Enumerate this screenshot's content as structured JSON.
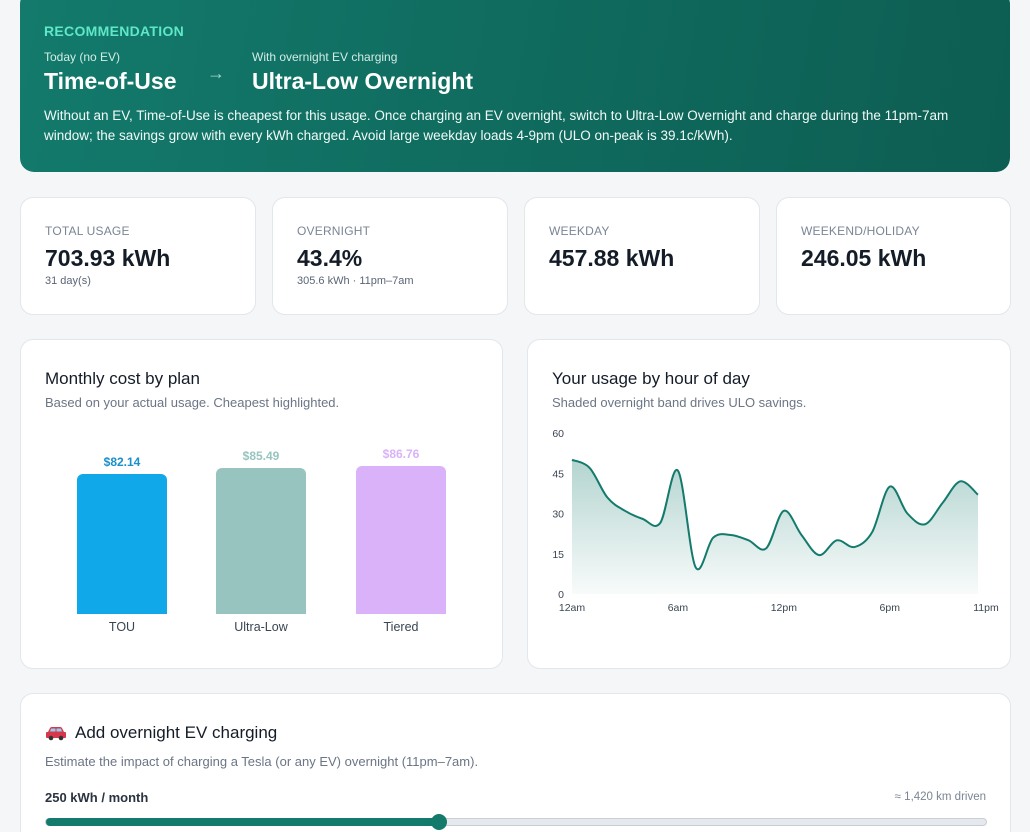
{
  "recommendation": {
    "label": "RECOMMENDATION",
    "today_label": "Today (no EV)",
    "today_plan": "Time-of-Use",
    "arrow": "→",
    "ev_label": "With overnight EV charging",
    "ev_plan": "Ultra-Low Overnight",
    "description": "Without an EV, Time-of-Use is cheapest for this usage. Once charging an EV overnight, switch to Ultra-Low Overnight and charge during the 11pm-7am window; the savings grow with every kWh charged. Avoid large weekday loads 4-9pm (ULO on-peak is 39.1c/kWh)."
  },
  "stats": [
    {
      "label": "TOTAL USAGE",
      "value": "703.93 kWh",
      "sub": "31 day(s)"
    },
    {
      "label": "OVERNIGHT",
      "value": "43.4%",
      "sub": "305.6 kWh · 11pm–7am"
    },
    {
      "label": "WEEKDAY",
      "value": "457.88 kWh",
      "sub": ""
    },
    {
      "label": "WEEKEND/HOLIDAY",
      "value": "246.05 kWh",
      "sub": ""
    }
  ],
  "cost_card": {
    "title": "Monthly cost by plan",
    "subtitle": "Based on your actual usage. Cheapest highlighted."
  },
  "usage_card": {
    "title": "Your usage by hour of day",
    "subtitle": "Shaded overnight band drives ULO savings."
  },
  "ev": {
    "icon": "car-icon",
    "title": "Add overnight EV charging",
    "subtitle": "Estimate the impact of charging a Tesla (or any EV) overnight (11pm–7am).",
    "value_label": "250 kWh / month",
    "km_label": "≈ 1,420 km driven",
    "slider_fraction": 0.418
  },
  "colors": {
    "accent": "#137a6c",
    "tou": "#10a8e8",
    "ulo": "#97c4bf",
    "tiered": "#d9b2fa"
  },
  "chart_data": [
    {
      "type": "bar",
      "categories": [
        "TOU",
        "Ultra-Low",
        "Tiered"
      ],
      "values": [
        82.14,
        85.49,
        86.76
      ],
      "value_labels": [
        "$82.14",
        "$85.49",
        "$86.76"
      ],
      "colors": [
        "#10a8e8",
        "#97c4bf",
        "#d9b2fa"
      ],
      "title": "Monthly cost by plan",
      "subtitle": "Based on your actual usage. Cheapest highlighted."
    },
    {
      "type": "area",
      "title": "Your usage by hour of day",
      "subtitle": "Shaded overnight band drives ULO savings.",
      "x": [
        0,
        1,
        2,
        3,
        4,
        5,
        6,
        7,
        8,
        9,
        10,
        11,
        12,
        13,
        14,
        15,
        16,
        17,
        18,
        19,
        20,
        21,
        22,
        23
      ],
      "x_tick_labels": [
        "12am",
        "6am",
        "12pm",
        "6pm",
        "11pm"
      ],
      "x_tick_positions": [
        0,
        6,
        12,
        18,
        23
      ],
      "y": [
        50,
        47,
        36,
        31,
        28,
        26.5,
        46,
        10,
        21,
        22,
        20,
        17,
        31,
        22,
        14.5,
        20,
        17.5,
        23,
        40,
        30,
        26,
        34,
        42,
        37
      ],
      "ylim": [
        0,
        60
      ],
      "yticks": [
        0,
        15,
        30,
        45,
        60
      ],
      "line_color": "#137a6c"
    }
  ]
}
